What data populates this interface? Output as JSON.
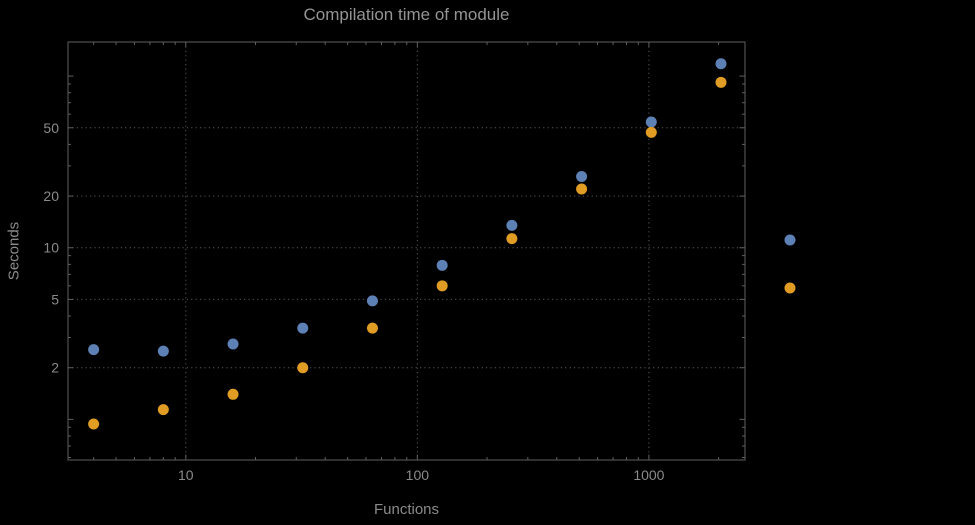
{
  "chart_data": {
    "type": "scatter",
    "title": "Compilation time of module",
    "xlabel": "Functions",
    "ylabel": "Seconds",
    "x_scale": "log",
    "y_scale": "log",
    "x": [
      4,
      8,
      16,
      32,
      64,
      128,
      256,
      512,
      1024,
      2048
    ],
    "series": [
      {
        "name": "blue",
        "color": "#5E81B5",
        "values": [
          2.55,
          2.5,
          2.75,
          3.4,
          4.9,
          7.9,
          13.5,
          26,
          54,
          118
        ]
      },
      {
        "name": "orange",
        "color": "#E19C24",
        "values": [
          0.94,
          1.14,
          1.4,
          2.0,
          3.4,
          6.0,
          11.3,
          22,
          47,
          92
        ]
      }
    ],
    "x_tick_labels": [
      "10",
      "100",
      "1000"
    ],
    "x_ticks": [
      10,
      100,
      1000
    ],
    "y_tick_labels": [
      "2",
      "5",
      "10",
      "20",
      "50"
    ],
    "y_ticks": [
      2,
      5,
      10,
      20,
      50
    ],
    "xlim": [
      3.1,
      2600
    ],
    "ylim": [
      0.58,
      158
    ],
    "grid": "dotted",
    "legend_position": "right",
    "legend_markers": [
      {
        "name": "blue-series-marker",
        "color": "#5E81B5"
      },
      {
        "name": "orange-series-marker",
        "color": "#E19C24"
      }
    ]
  },
  "colors": {
    "background": "#000000",
    "frame": "#5f5f5f",
    "grid": "#575757",
    "text": "#8a8a8a",
    "title_text": "#949494",
    "series_blue": "#5E81B5",
    "series_orange": "#E19C24"
  }
}
